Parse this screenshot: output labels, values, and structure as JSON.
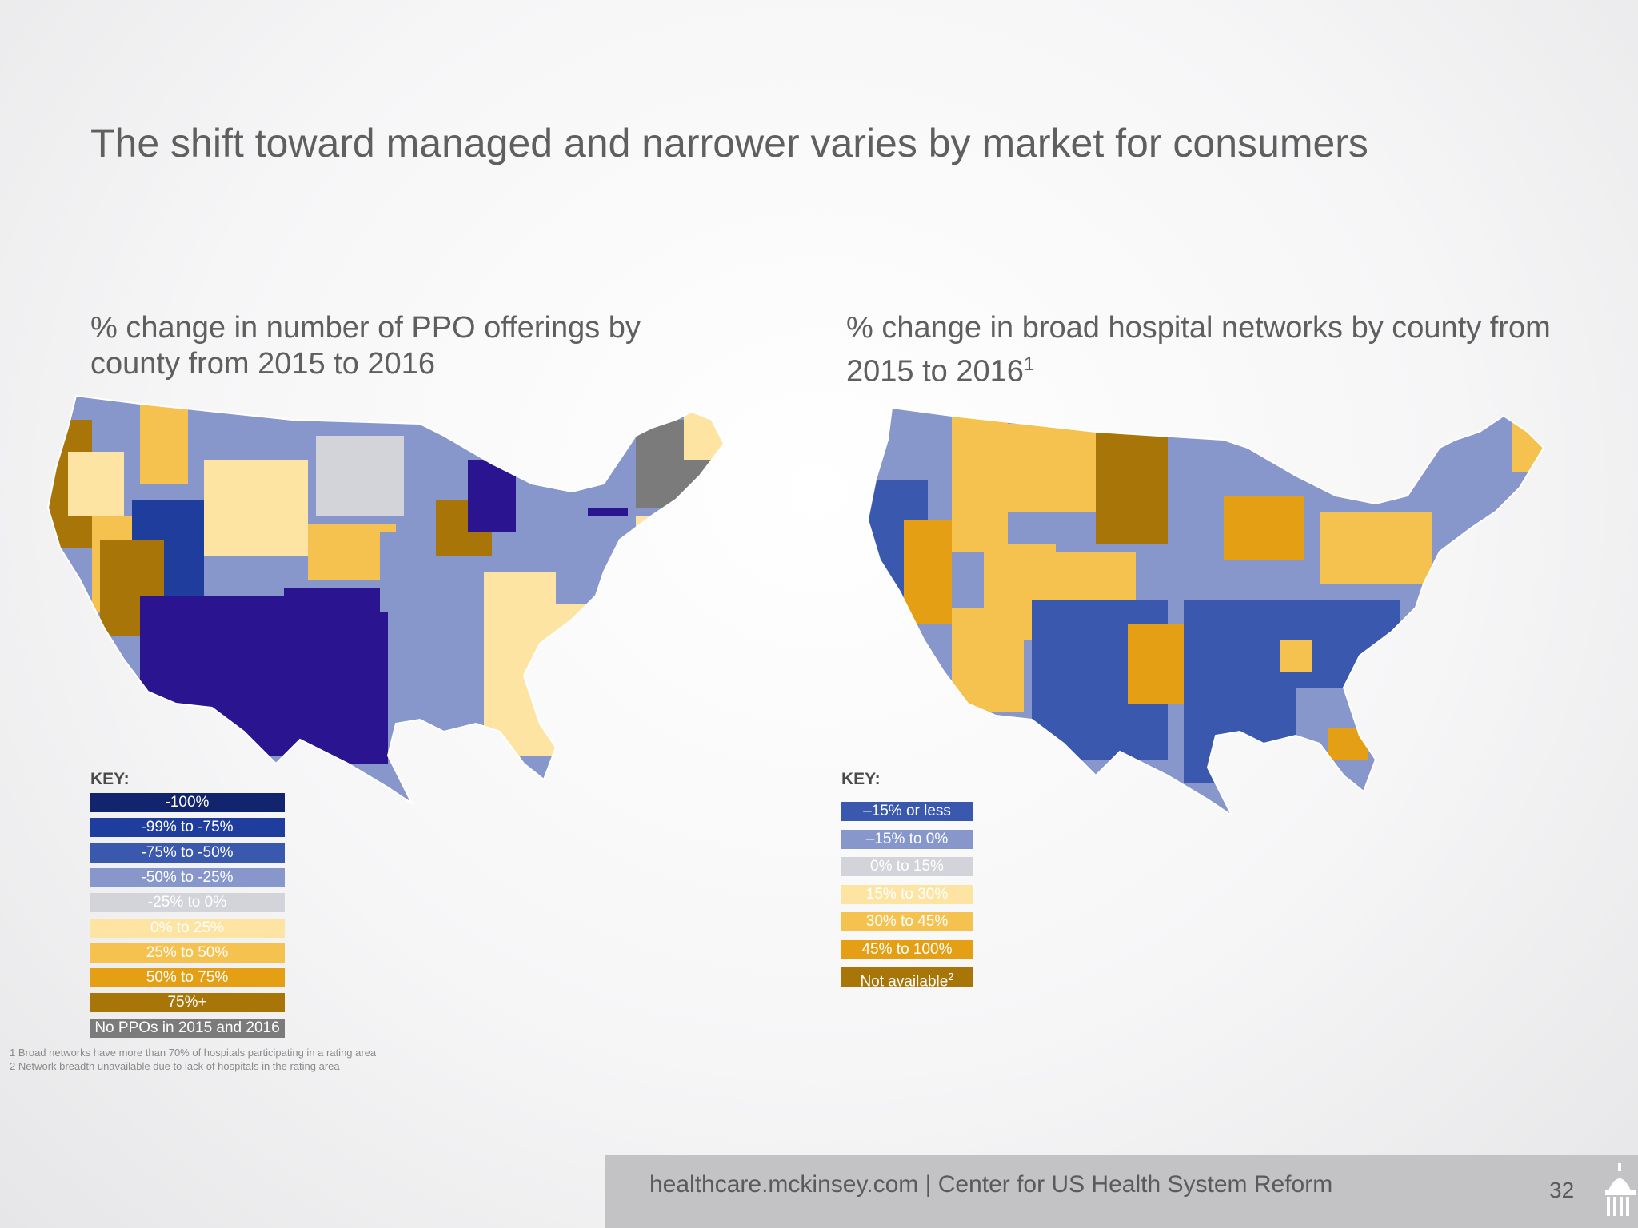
{
  "title": "The shift toward managed and narrower varies by market for consumers",
  "left_panel": {
    "subtitle": "% change in number of PPO offerings by county from 2015 to 2016",
    "key_title": "KEY:",
    "key": [
      {
        "label": "-100%",
        "color": "#13246e"
      },
      {
        "label": "-99% to -75%",
        "color": "#1f3d9c"
      },
      {
        "label": "-75% to -50%",
        "color": "#3a58ad"
      },
      {
        "label": "-50% to -25%",
        "color": "#8797cc"
      },
      {
        "label": "-25% to 0%",
        "color": "#d3d4da"
      },
      {
        "label": "0% to 25%",
        "color": "#fde4a3"
      },
      {
        "label": "25% to 50%",
        "color": "#f6c24f"
      },
      {
        "label": "50% to 75%",
        "color": "#e59f14"
      },
      {
        "label": "75%+",
        "color": "#a87608"
      },
      {
        "label": "No PPOs in 2015 and 2016",
        "color": "#7b7b7b"
      }
    ]
  },
  "right_panel": {
    "subtitle": "% change in broad hospital networks by county from 2015 to 2016",
    "subtitle_sup": "1",
    "key_title": "KEY:",
    "key": [
      {
        "label": "–15% or less",
        "color": "#3a58ad"
      },
      {
        "label": "–15% to 0%",
        "color": "#8797cc"
      },
      {
        "label": "0% to 15%",
        "color": "#d3d4da"
      },
      {
        "label": "15% to 30%",
        "color": "#fde4a3"
      },
      {
        "label": "30% to 45%",
        "color": "#f6c24f"
      },
      {
        "label": "45% to 100%",
        "color": "#e59f14"
      },
      {
        "label": "Not available",
        "label_sup": "2",
        "color": "#a87608"
      }
    ]
  },
  "footnotes": [
    "1 Broad networks have more than 70% of hospitals participating in a rating area",
    "2 Network breadth unavailable due to lack of hospitals in the rating area"
  ],
  "footer": {
    "text": "healthcare.mckinsey.com | Center for US Health System Reform",
    "page_number": "32"
  }
}
